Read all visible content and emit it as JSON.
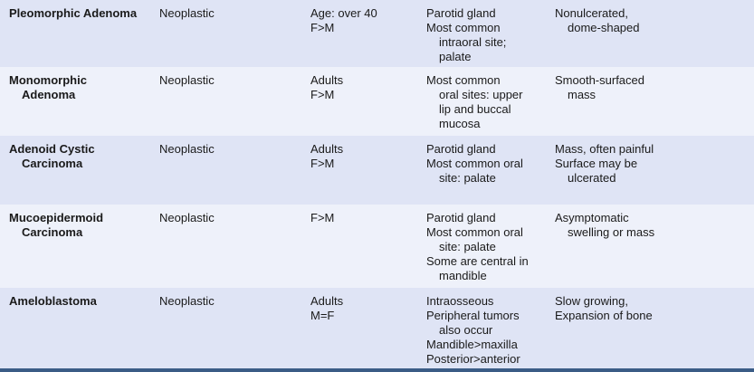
{
  "rows": [
    {
      "name": [
        "Pleomorphic Adenoma"
      ],
      "type": [
        "Neoplastic"
      ],
      "demographics": [
        "Age: over 40",
        "F>M"
      ],
      "location": [
        "Parotid gland",
        "Most common",
        "intraoral site;",
        "palate"
      ],
      "features": [
        "Nonulcerated,",
        "dome-shaped"
      ]
    },
    {
      "name": [
        "Monomorphic",
        "Adenoma"
      ],
      "type": [
        "Neoplastic"
      ],
      "demographics": [
        "Adults",
        "F>M"
      ],
      "location": [
        "Most common",
        "oral sites: upper",
        "lip and buccal",
        "mucosa"
      ],
      "features": [
        "Smooth-surfaced",
        "mass"
      ]
    },
    {
      "name": [
        "Adenoid Cystic",
        "Carcinoma"
      ],
      "type": [
        "Neoplastic"
      ],
      "demographics": [
        "Adults",
        "F>M"
      ],
      "location": [
        "Parotid gland",
        "Most common oral",
        "site: palate"
      ],
      "features": [
        "Mass, often painful",
        "Surface may be",
        "ulcerated"
      ]
    },
    {
      "name": [
        "Mucoepidermoid",
        "Carcinoma"
      ],
      "type": [
        "Neoplastic"
      ],
      "demographics": [
        "F>M"
      ],
      "location": [
        "Parotid gland",
        "Most common oral",
        "site: palate",
        "Some are central in",
        "mandible"
      ],
      "features": [
        "Asymptomatic",
        "swelling or mass"
      ]
    },
    {
      "name": [
        "Ameloblastoma"
      ],
      "type": [
        "Neoplastic"
      ],
      "demographics": [
        "Adults",
        "M=F"
      ],
      "location": [
        "Intraosseous",
        "Peripheral tumors",
        "also occur",
        "Mandible>maxilla",
        "Posterior>anterior"
      ],
      "features": [
        "Slow growing,",
        "Expansion of bone"
      ]
    }
  ]
}
